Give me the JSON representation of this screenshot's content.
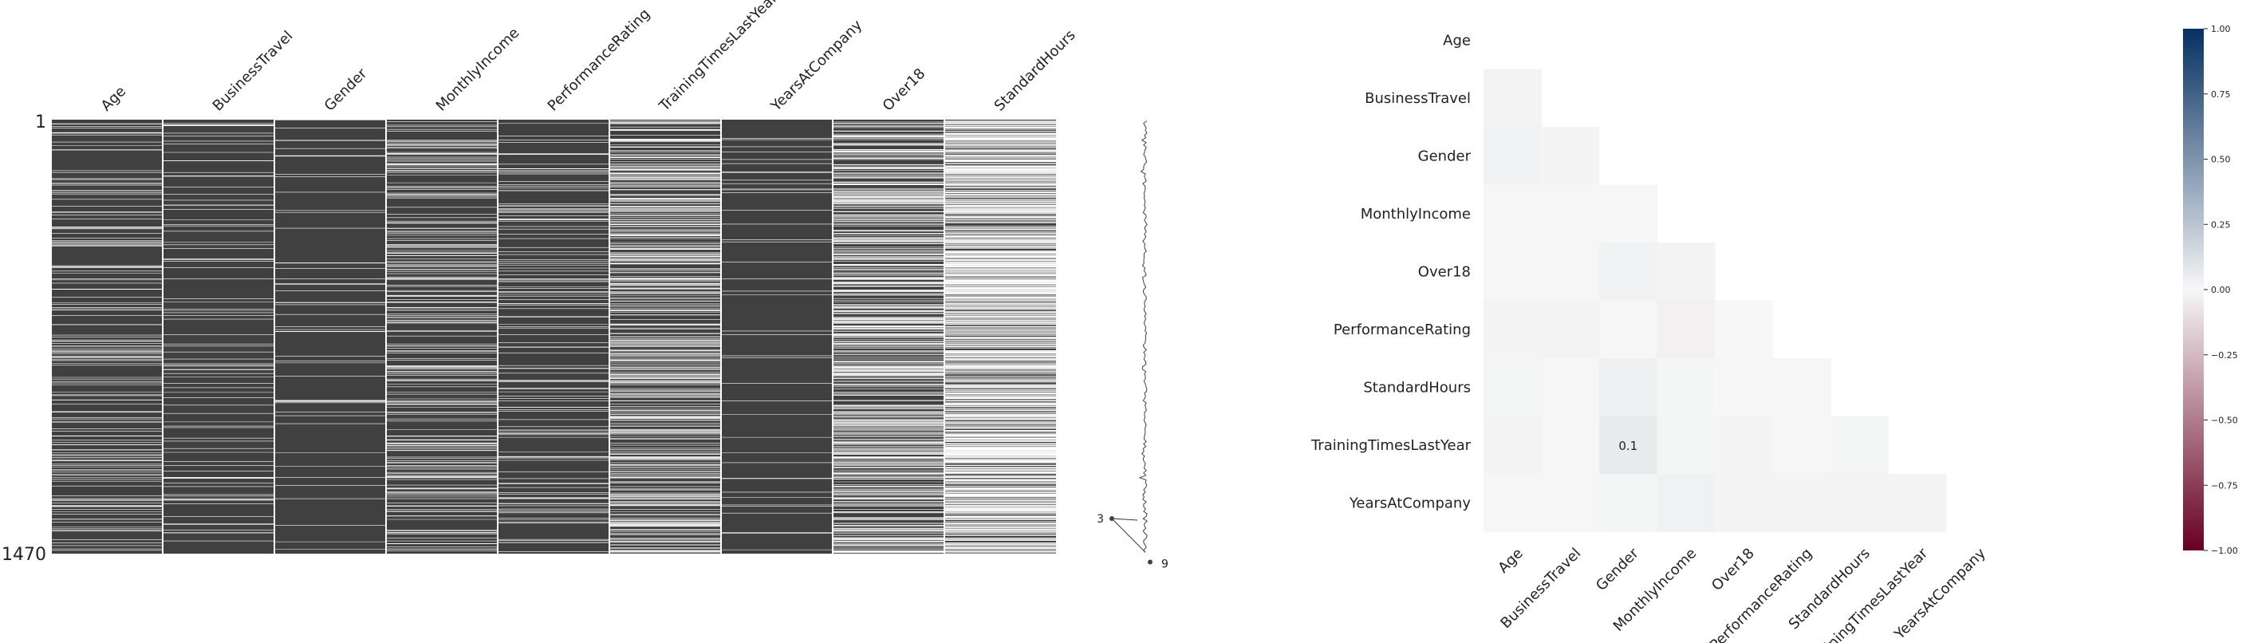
{
  "chart_data": [
    {
      "type": "matrix",
      "columns": [
        "Age",
        "BusinessTravel",
        "Gender",
        "MonthlyIncome",
        "PerformanceRating",
        "TrainingTimesLastYear",
        "YearsAtCompany",
        "Over18",
        "StandardHours"
      ],
      "row_range": [
        1,
        1470
      ],
      "row_labels": [
        "1",
        "1470"
      ],
      "missing_fraction": [
        0.1,
        0.05,
        0.04,
        0.15,
        0.08,
        0.25,
        0.03,
        0.3,
        0.55
      ],
      "sparkline": {
        "min_value": 3,
        "max_value": 9,
        "min_label": "3",
        "max_label": "9"
      },
      "colors": {
        "present": "#404040",
        "missing": "#ffffff"
      }
    },
    {
      "type": "heatmap",
      "row_labels": [
        "Age",
        "BusinessTravel",
        "Gender",
        "MonthlyIncome",
        "Over18",
        "PerformanceRating",
        "StandardHours",
        "TrainingTimesLastYear",
        "YearsAtCompany"
      ],
      "col_labels": [
        "Age",
        "BusinessTravel",
        "Gender",
        "MonthlyIncome",
        "Over18",
        "PerformanceRating",
        "StandardHours",
        "TrainingTimesLastYear",
        "YearsAtCompany"
      ],
      "values": [
        [],
        [
          0.03
        ],
        [
          0.04,
          -0.02
        ],
        [
          0.01,
          0.01,
          0.01
        ],
        [
          0.01,
          0.01,
          0.05,
          0.03
        ],
        [
          -0.02,
          -0.03,
          -0.01,
          -0.05,
          0.0
        ],
        [
          0.02,
          0.01,
          0.06,
          0.02,
          -0.01,
          -0.01
        ],
        [
          0.03,
          0.01,
          0.1,
          0.02,
          -0.02,
          -0.01,
          0.02
        ],
        [
          0.01,
          0.01,
          0.02,
          0.05,
          -0.02,
          -0.02,
          -0.03,
          -0.02
        ]
      ],
      "annotations": [
        {
          "row": "TrainingTimesLastYear",
          "col": "Gender",
          "text": "0.1"
        }
      ],
      "colorbar": {
        "min": -1.0,
        "max": 1.0,
        "ticks": [
          "1.00",
          "0.75",
          "0.50",
          "0.25",
          "0.00",
          "−0.25",
          "−0.50",
          "−0.75",
          "−1.00"
        ]
      },
      "colors": {
        "low": "#67001f",
        "mid": "#f7f7f7",
        "high": "#053061"
      }
    }
  ]
}
